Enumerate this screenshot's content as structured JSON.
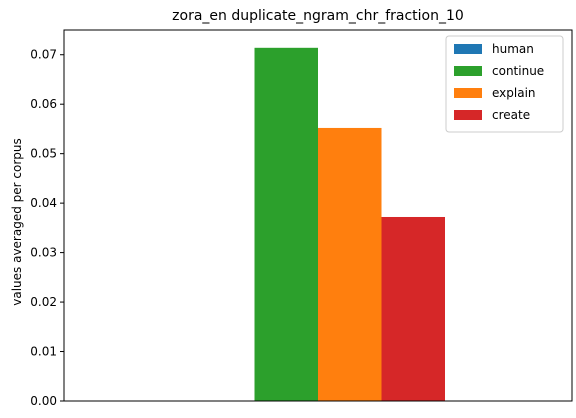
{
  "chart_data": {
    "type": "bar",
    "title": "zora_en duplicate_ngram_chr_fraction_10",
    "xlabel": "",
    "ylabel": "values averaged per corpus",
    "ylim": [
      0,
      0.075
    ],
    "yticks": [
      0.0,
      0.01,
      0.02,
      0.03,
      0.04,
      0.05,
      0.06,
      0.07
    ],
    "ytick_labels": [
      "0.00",
      "0.01",
      "0.02",
      "0.03",
      "0.04",
      "0.05",
      "0.06",
      "0.07"
    ],
    "categories": [
      ""
    ],
    "series": [
      {
        "name": "human",
        "color": "#1f77b4",
        "values": [
          0
        ]
      },
      {
        "name": "continue",
        "color": "#2ca02c",
        "values": [
          0.0714
        ]
      },
      {
        "name": "explain",
        "color": "#ff7f0e",
        "values": [
          0.0552
        ]
      },
      {
        "name": "create",
        "color": "#d62728",
        "values": [
          0.0372
        ]
      }
    ],
    "grid": false,
    "legend_position": "top-right"
  }
}
